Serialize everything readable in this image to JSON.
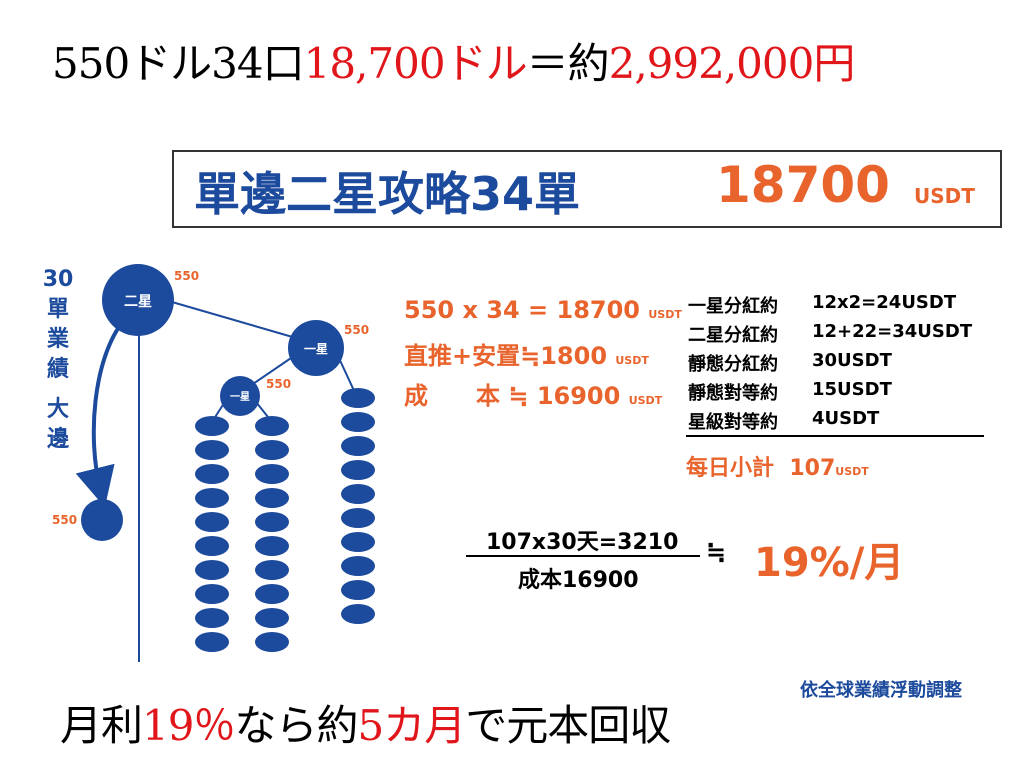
{
  "top_title": {
    "part1": "550ドル34口",
    "part2": "18,700ドル",
    "part3": "＝約",
    "part4": "2,992,000円"
  },
  "banner": {
    "title": "單邊二星攻略34單",
    "amount": "18700",
    "unit": "USDT"
  },
  "tree": {
    "side_label": [
      "30",
      "單",
      "業",
      "績",
      "大",
      "邊"
    ],
    "root_label": "二星",
    "mid_label": "一星",
    "left_label": "一星",
    "root_value": "550",
    "mid_value": "550",
    "left_value": "550",
    "bottom_value": "550"
  },
  "calc": {
    "line1": "550 x 34 = 18700",
    "line2": "直推+安置≒1800",
    "line3_a": "成",
    "line3_b": "本 ≒ 16900",
    "unit": "USDT"
  },
  "bonus": {
    "rows": [
      {
        "label": "一星分紅約",
        "value": "12x2=24USDT"
      },
      {
        "label": "二星分紅約",
        "value": "12+22=34USDT"
      },
      {
        "label": "靜態分紅約",
        "value": "30USDT"
      },
      {
        "label": "靜態對等約",
        "value": "15USDT"
      },
      {
        "label": "星級對等約",
        "value": "4USDT"
      }
    ],
    "subtotal_label": "每日小計",
    "subtotal_value": "107",
    "subtotal_unit": "USDT"
  },
  "fraction": {
    "numerator": "107x30天=3210",
    "denominator": "成本16900",
    "approx": "≒",
    "result": "19%/月"
  },
  "footnote": "依全球業績浮動調整",
  "bottom_title": {
    "part1": "月利",
    "part2": "19％",
    "part3": "なら約",
    "part4": "5カ月",
    "part5": "で元本回収"
  },
  "colors": {
    "blue": "#1c4a9c",
    "orange": "#e8642c",
    "red": "#e0161b"
  }
}
